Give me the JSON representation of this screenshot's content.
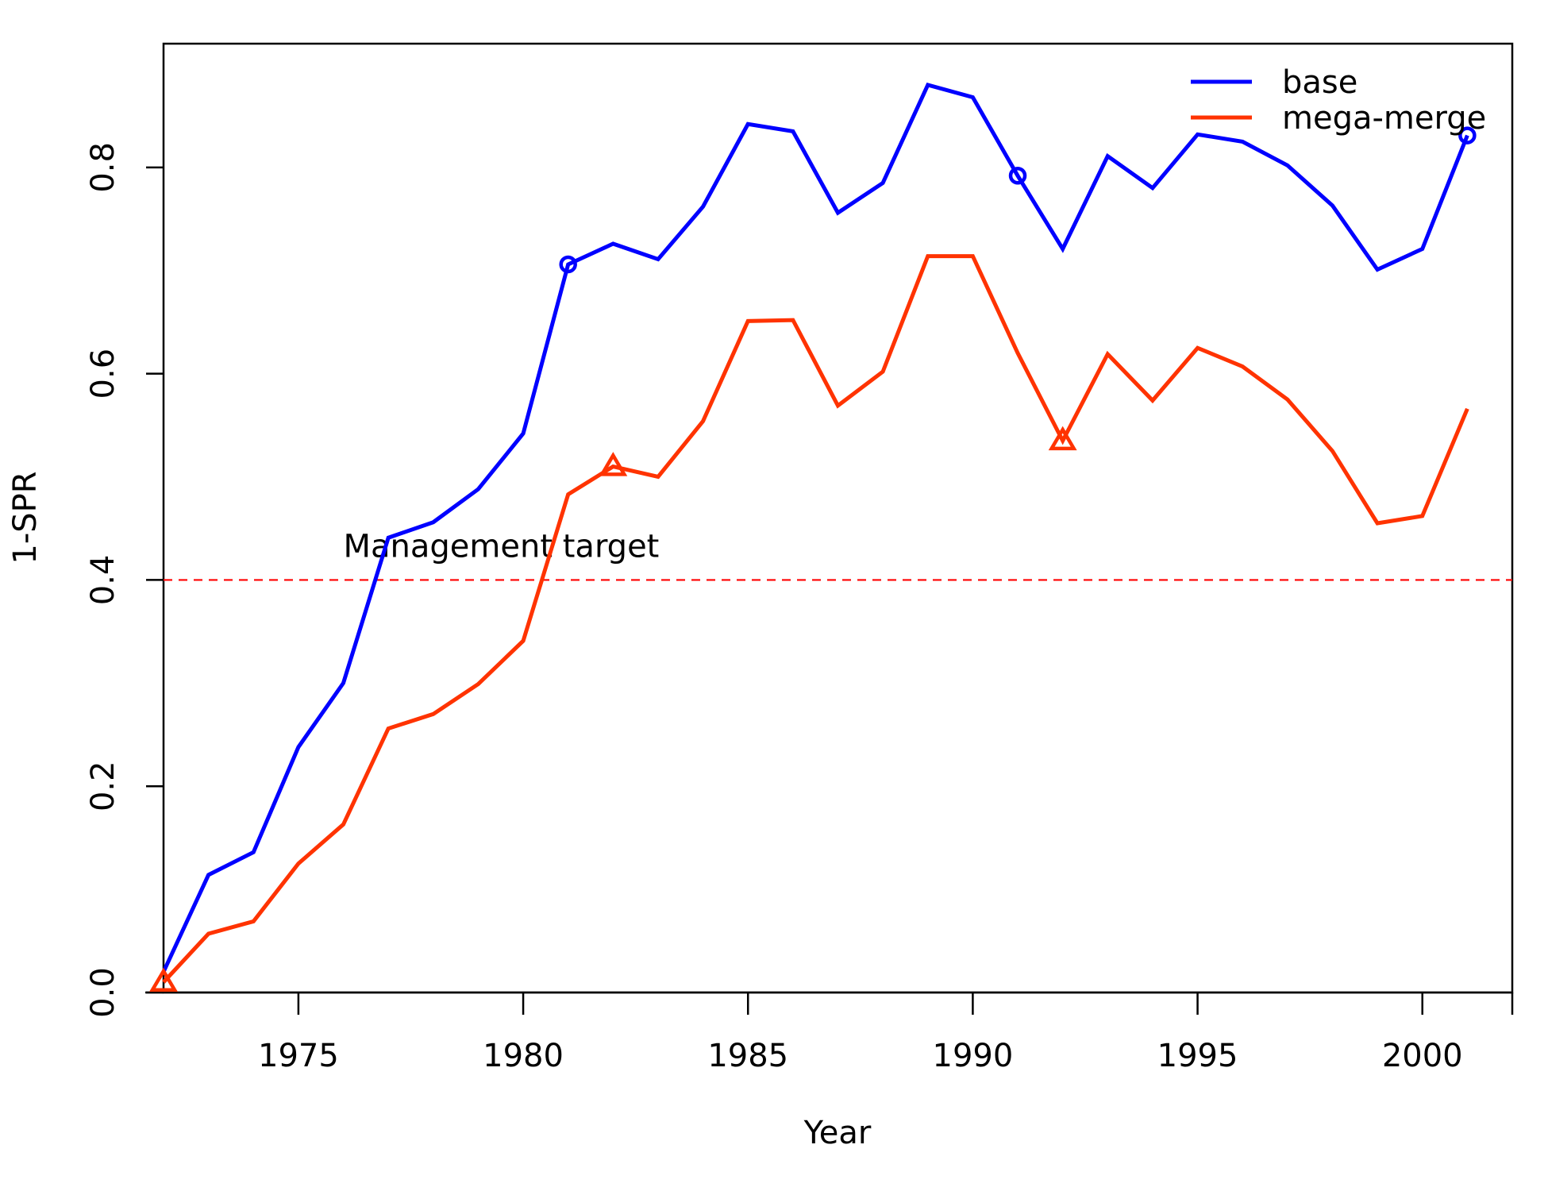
{
  "chart_data": {
    "type": "line",
    "title": "",
    "xlabel": "Year",
    "ylabel": "1-SPR",
    "xlim": [
      1972,
      2002
    ],
    "ylim": [
      0,
      0.92
    ],
    "x_ticks": [
      1975,
      1980,
      1985,
      1990,
      1995,
      2000
    ],
    "x_tick_labels": [
      "1975",
      "1980",
      "1985",
      "1990",
      "1995",
      "2000"
    ],
    "y_ticks": [
      0.0,
      0.2,
      0.4,
      0.6,
      0.8
    ],
    "y_tick_labels": [
      "0.0",
      "0.2",
      "0.4",
      "0.6",
      "0.8"
    ],
    "grid": false,
    "legend_position": "top-right",
    "reference_line": {
      "y": 0.4,
      "label": "Management target",
      "label_x": 1976,
      "color": "#ff0000",
      "style": "dashed"
    },
    "x": [
      1972,
      1973,
      1974,
      1975,
      1976,
      1977,
      1978,
      1979,
      1980,
      1981,
      1982,
      1983,
      1984,
      1985,
      1986,
      1987,
      1988,
      1989,
      1990,
      1991,
      1992,
      1993,
      1994,
      1995,
      1996,
      1997,
      1998,
      1999,
      2000,
      2001
    ],
    "series": [
      {
        "name": "base",
        "color": "#0000ff",
        "marker": "circle",
        "marker_x": [
          1981,
          1991,
          2001
        ],
        "values": [
          0.02,
          0.114,
          0.136,
          0.238,
          0.3,
          0.441,
          0.456,
          0.488,
          0.542,
          0.706,
          0.726,
          0.711,
          0.762,
          0.842,
          0.835,
          0.756,
          0.785,
          0.88,
          0.868,
          0.792,
          0.721,
          0.811,
          0.78,
          0.832,
          0.825,
          0.802,
          0.763,
          0.701,
          0.721,
          0.831
        ]
      },
      {
        "name": "mega-merge",
        "color": "#ff3300",
        "marker": "triangle",
        "marker_x": [
          1972,
          1982,
          1992
        ],
        "values": [
          0.01,
          0.057,
          0.069,
          0.125,
          0.163,
          0.256,
          0.27,
          0.299,
          0.341,
          0.483,
          0.51,
          0.5,
          0.554,
          0.651,
          0.652,
          0.569,
          0.602,
          0.714,
          0.714,
          0.62,
          0.535,
          0.619,
          0.574,
          0.625,
          0.607,
          0.575,
          0.525,
          0.455,
          0.462,
          0.566
        ]
      }
    ]
  }
}
